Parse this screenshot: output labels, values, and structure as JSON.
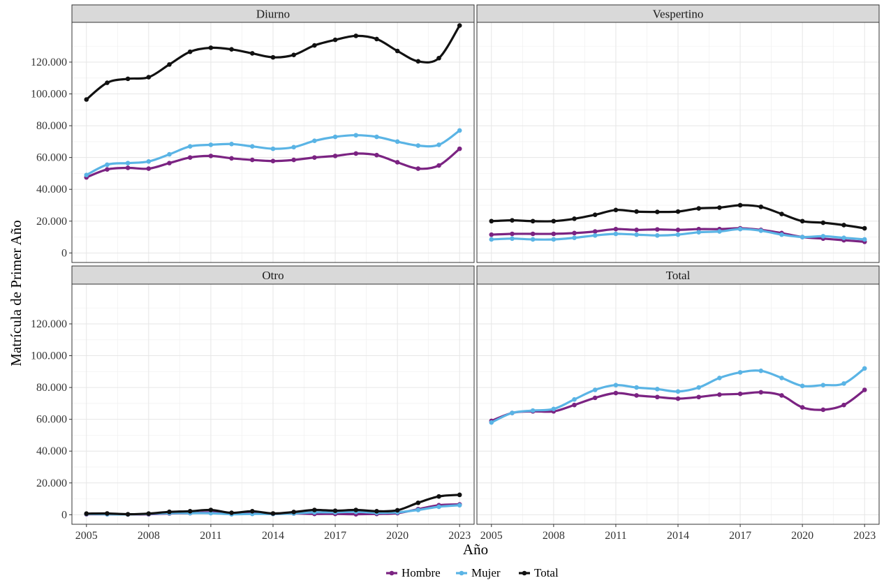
{
  "chart_data": {
    "type": "line",
    "xlabel": "Año",
    "ylabel": "Matrícula de Primer Año",
    "x": [
      2005,
      2006,
      2007,
      2008,
      2009,
      2010,
      2011,
      2012,
      2013,
      2014,
      2015,
      2016,
      2017,
      2018,
      2019,
      2020,
      2021,
      2022,
      2023
    ],
    "x_ticks": [
      2005,
      2008,
      2011,
      2014,
      2017,
      2020,
      2023
    ],
    "x_tick_labels": [
      "2005",
      "2008",
      "2011",
      "2014",
      "2017",
      "2020",
      "2023"
    ],
    "xlim": [
      2004.3,
      2023.7
    ],
    "y_ticks": [
      0,
      20000,
      40000,
      60000,
      80000,
      100000,
      120000
    ],
    "y_tick_labels": [
      "0",
      "20.000",
      "40.000",
      "60.000",
      "80.000",
      "100.000",
      "120.000"
    ],
    "ylim": [
      -6000,
      145000
    ],
    "grid": true,
    "legend_position": "bottom",
    "legend": [
      {
        "name": "Hombre",
        "color": "#7b2382"
      },
      {
        "name": "Mujer",
        "color": "#5ab4e5"
      },
      {
        "name": "Total",
        "color": "#111111"
      }
    ],
    "facets": [
      {
        "title": "Diurno",
        "series": [
          {
            "name": "Hombre",
            "values": [
              47500,
              52500,
              53500,
              53000,
              56500,
              60000,
              61000,
              59500,
              58500,
              57800,
              58500,
              60000,
              61000,
              62500,
              61500,
              57000,
              53000,
              55000,
              65500
            ]
          },
          {
            "name": "Mujer",
            "values": [
              49000,
              55500,
              56500,
              57500,
              62000,
              67000,
              68000,
              68500,
              67000,
              65500,
              66500,
              70500,
              73000,
              74000,
              73000,
              70000,
              67500,
              68000,
              77000
            ]
          },
          {
            "name": "Total",
            "values": [
              96500,
              107000,
              109500,
              110500,
              118500,
              126500,
              129000,
              128000,
              125500,
              123000,
              124500,
              130500,
              134000,
              136500,
              134500,
              127000,
              120500,
              122500,
              143000
            ]
          }
        ]
      },
      {
        "title": "Vespertino",
        "series": [
          {
            "name": "Hombre",
            "values": [
              11500,
              12000,
              12000,
              12000,
              12500,
              13500,
              15000,
              14500,
              14800,
              14500,
              15000,
              15000,
              15500,
              14500,
              12500,
              10000,
              9000,
              8000,
              7000
            ]
          },
          {
            "name": "Mujer",
            "values": [
              8500,
              9000,
              8500,
              8500,
              9500,
              11000,
              12000,
              11500,
              11000,
              11500,
              13000,
              13500,
              15000,
              14000,
              11500,
              10000,
              10500,
              9500,
              8500
            ]
          },
          {
            "name": "Total",
            "values": [
              20000,
              20500,
              20000,
              20000,
              21500,
              24000,
              27000,
              26000,
              25800,
              26000,
              28000,
              28500,
              30000,
              29000,
              24500,
              20000,
              19000,
              17500,
              15500
            ]
          }
        ]
      },
      {
        "title": "Otro",
        "series": [
          {
            "name": "Hombre",
            "values": [
              300,
              300,
              200,
              300,
              800,
              1000,
              1500,
              800,
              1000,
              500,
              800,
              500,
              500,
              300,
              500,
              1000,
              3500,
              6000,
              6500
            ]
          },
          {
            "name": "Mujer",
            "values": [
              500,
              300,
              200,
              500,
              1000,
              1000,
              1000,
              300,
              500,
              500,
              800,
              1500,
              1500,
              1800,
              1200,
              1500,
              3000,
              5000,
              6000
            ]
          },
          {
            "name": "Total",
            "values": [
              700,
              800,
              300,
              700,
              1800,
              2200,
              3000,
              1200,
              2200,
              800,
              1700,
              3000,
              2500,
              3000,
              2200,
              2800,
              7500,
              11500,
              12500
            ]
          }
        ]
      },
      {
        "title": "Total",
        "series": [
          {
            "name": "Hombre",
            "values": [
              59000,
              64000,
              65000,
              65000,
              69000,
              73500,
              76500,
              75000,
              74000,
              73000,
              74000,
              75500,
              76000,
              77000,
              75000,
              67500,
              66000,
              69000,
              78500
            ]
          },
          {
            "name": "Mujer",
            "values": [
              58000,
              64000,
              65500,
              66500,
              72500,
              78500,
              81500,
              80000,
              79000,
              77500,
              80000,
              86000,
              89500,
              90500,
              86000,
              81000,
              81500,
              82500,
              92000
            ]
          }
        ]
      }
    ]
  }
}
